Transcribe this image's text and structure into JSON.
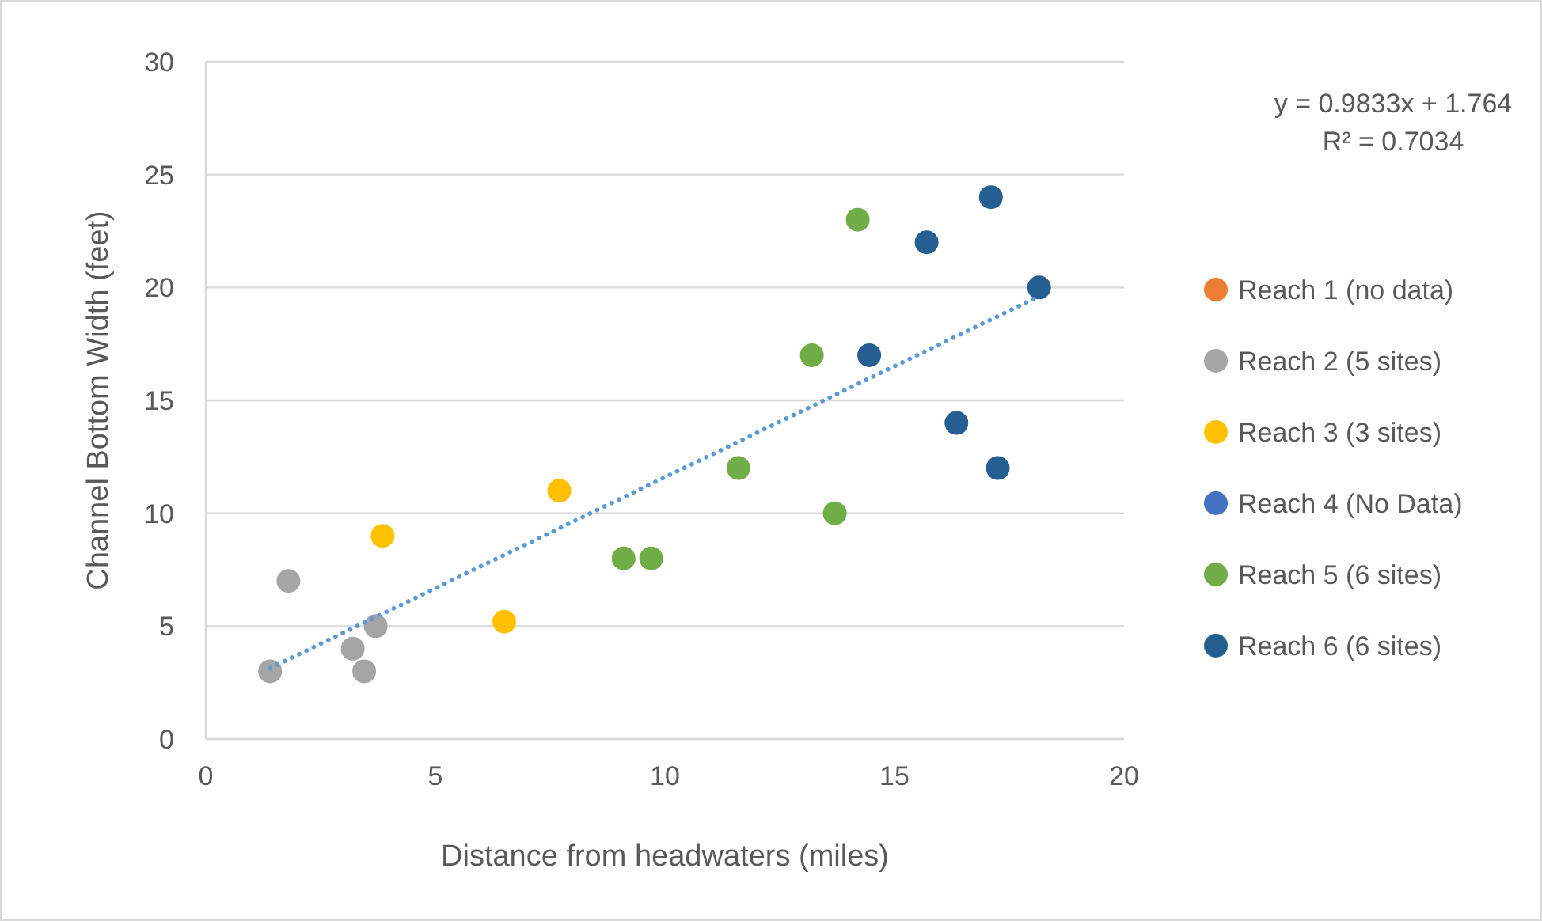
{
  "chart_data": {
    "type": "scatter",
    "xlabel": "Distance from headwaters (miles)",
    "ylabel": "Channel Bottom Width (feet)",
    "xlim": [
      0,
      20
    ],
    "xticks": [
      0,
      5,
      10,
      15,
      20
    ],
    "ylim": [
      0,
      30
    ],
    "yticks": [
      0,
      5,
      10,
      15,
      20,
      25,
      30
    ],
    "grid": "y",
    "legend": "right",
    "marker": "circle",
    "annotations": [
      "y = 0.9833x + 1.764",
      "R² = 0.7034"
    ],
    "series": [
      {
        "name": "Reach 1 (no data)",
        "color": "#ed7d31"
      },
      {
        "name": "Reach 2 (5 sites)",
        "color": "#a5a5a5",
        "x": [
          1.4,
          1.8,
          3.2,
          3.45,
          3.7
        ],
        "values": [
          3,
          7,
          4,
          3,
          5
        ]
      },
      {
        "name": "Reach 3 (3 sites)",
        "color": "#ffc000",
        "x": [
          3.85,
          6.5,
          7.7
        ],
        "values": [
          9,
          5.2,
          11
        ]
      },
      {
        "name": "Reach 4 (No Data)",
        "color": "#4472c4"
      },
      {
        "name": "Reach 5 (6 sites)",
        "color": "#70ad47",
        "x": [
          9.1,
          9.7,
          11.6,
          13.2,
          13.7,
          14.2
        ],
        "values": [
          8,
          8,
          12,
          17,
          10,
          23
        ]
      },
      {
        "name": "Reach 6 (6 sites)",
        "color": "#255e91",
        "x": [
          14.45,
          15.7,
          17.1,
          16.35,
          17.25,
          18.15
        ],
        "values": [
          17,
          22,
          24,
          14,
          12,
          20
        ]
      },
      {
        "type": "line",
        "color": "#5b9bd5",
        "line_style": "dotted",
        "marker": "none",
        "x": [
          1.4,
          18.15
        ],
        "values": [
          3.14,
          19.61
        ]
      }
    ]
  }
}
